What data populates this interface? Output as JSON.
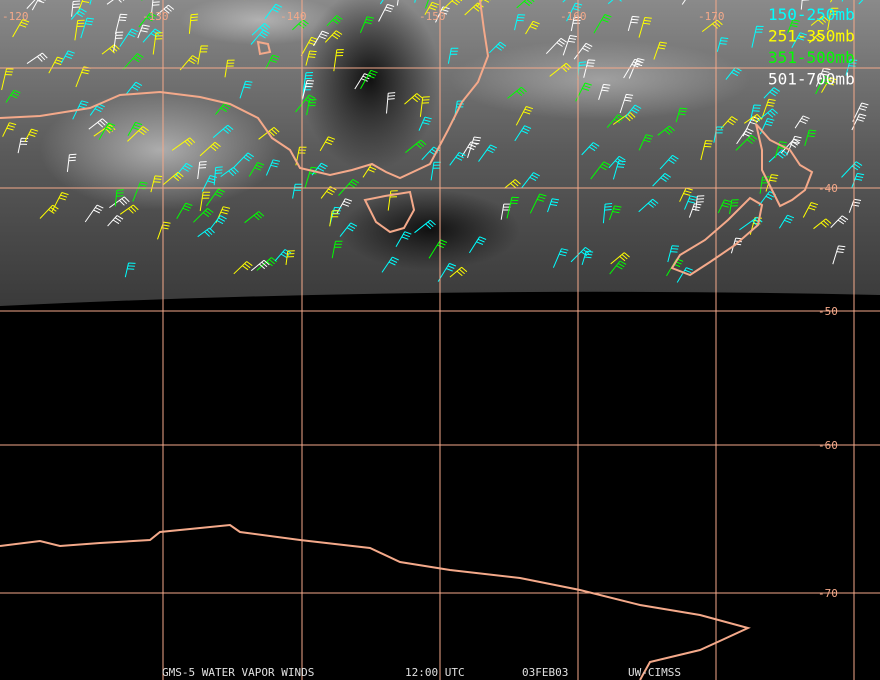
{
  "map": {
    "longitude_labels": [
      "-120",
      "-130",
      "-140",
      "-150",
      "-160",
      "-170"
    ],
    "latitude_labels": [
      "-40",
      "-50",
      "-60",
      "-70"
    ],
    "legend": [
      {
        "label": "150-250mb",
        "color": "#00ffff"
      },
      {
        "label": "251-350mb",
        "color": "#ffff00"
      },
      {
        "label": "351-500mb",
        "color": "#00ff00"
      },
      {
        "label": "501-700mb",
        "color": "#ffffff"
      }
    ],
    "footer": [
      "GMS-5 WATER VAPOR WINDS",
      "12:00 UTC",
      "03FEB03",
      "UW-CIMSS"
    ]
  }
}
